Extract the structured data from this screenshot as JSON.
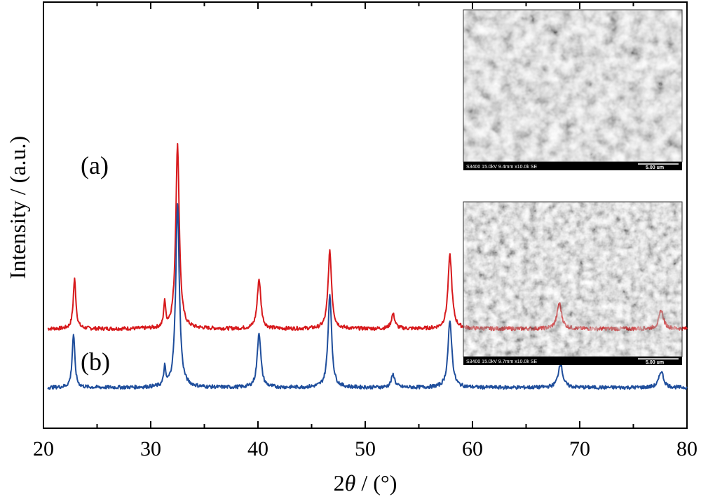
{
  "chart_data": {
    "type": "line",
    "title": "",
    "xlabel_prefix": "2",
    "xlabel_symbol": "θ",
    "xlabel_suffix": " / (°)",
    "ylabel": "Intensity / (a.u.)",
    "xlim": [
      20,
      80
    ],
    "xticks": [
      20,
      30,
      40,
      50,
      60,
      70,
      80
    ],
    "xtick_labels": [
      "20",
      "30",
      "40",
      "50",
      "60",
      "70",
      "80"
    ],
    "grid": false,
    "series": [
      {
        "name": "(a)",
        "color": "#d7191c",
        "baseline": 0.32,
        "peaks": [
          {
            "x": 22.9,
            "height": 0.27,
            "width": 0.15
          },
          {
            "x": 31.3,
            "height": 0.14,
            "width": 0.1
          },
          {
            "x": 32.5,
            "height": 1.0,
            "width": 0.2
          },
          {
            "x": 40.1,
            "height": 0.27,
            "width": 0.2
          },
          {
            "x": 46.7,
            "height": 0.42,
            "width": 0.2
          },
          {
            "x": 52.6,
            "height": 0.08,
            "width": 0.2
          },
          {
            "x": 57.9,
            "height": 0.4,
            "width": 0.22
          },
          {
            "x": 68.1,
            "height": 0.14,
            "width": 0.25
          },
          {
            "x": 77.6,
            "height": 0.1,
            "width": 0.25
          }
        ]
      },
      {
        "name": "(b)",
        "color": "#1f4e9c",
        "baseline": 0.0,
        "peaks": [
          {
            "x": 22.8,
            "height": 0.29,
            "width": 0.15
          },
          {
            "x": 31.3,
            "height": 0.1,
            "width": 0.1
          },
          {
            "x": 32.5,
            "height": 1.0,
            "width": 0.2
          },
          {
            "x": 40.1,
            "height": 0.3,
            "width": 0.2
          },
          {
            "x": 46.7,
            "height": 0.51,
            "width": 0.2
          },
          {
            "x": 52.6,
            "height": 0.07,
            "width": 0.2
          },
          {
            "x": 57.9,
            "height": 0.36,
            "width": 0.22
          },
          {
            "x": 68.2,
            "height": 0.13,
            "width": 0.25
          },
          {
            "x": 77.6,
            "height": 0.09,
            "width": 0.25
          }
        ]
      }
    ],
    "insets": [
      {
        "series": "(a)",
        "caption": "S3400 15.0kV 9.4mm x10.0k SE",
        "scale": "5.00 um"
      },
      {
        "series": "(b)",
        "caption": "S3400 15.0kV 9.7mm x10.0k SE",
        "scale": "5.00 um"
      }
    ]
  }
}
